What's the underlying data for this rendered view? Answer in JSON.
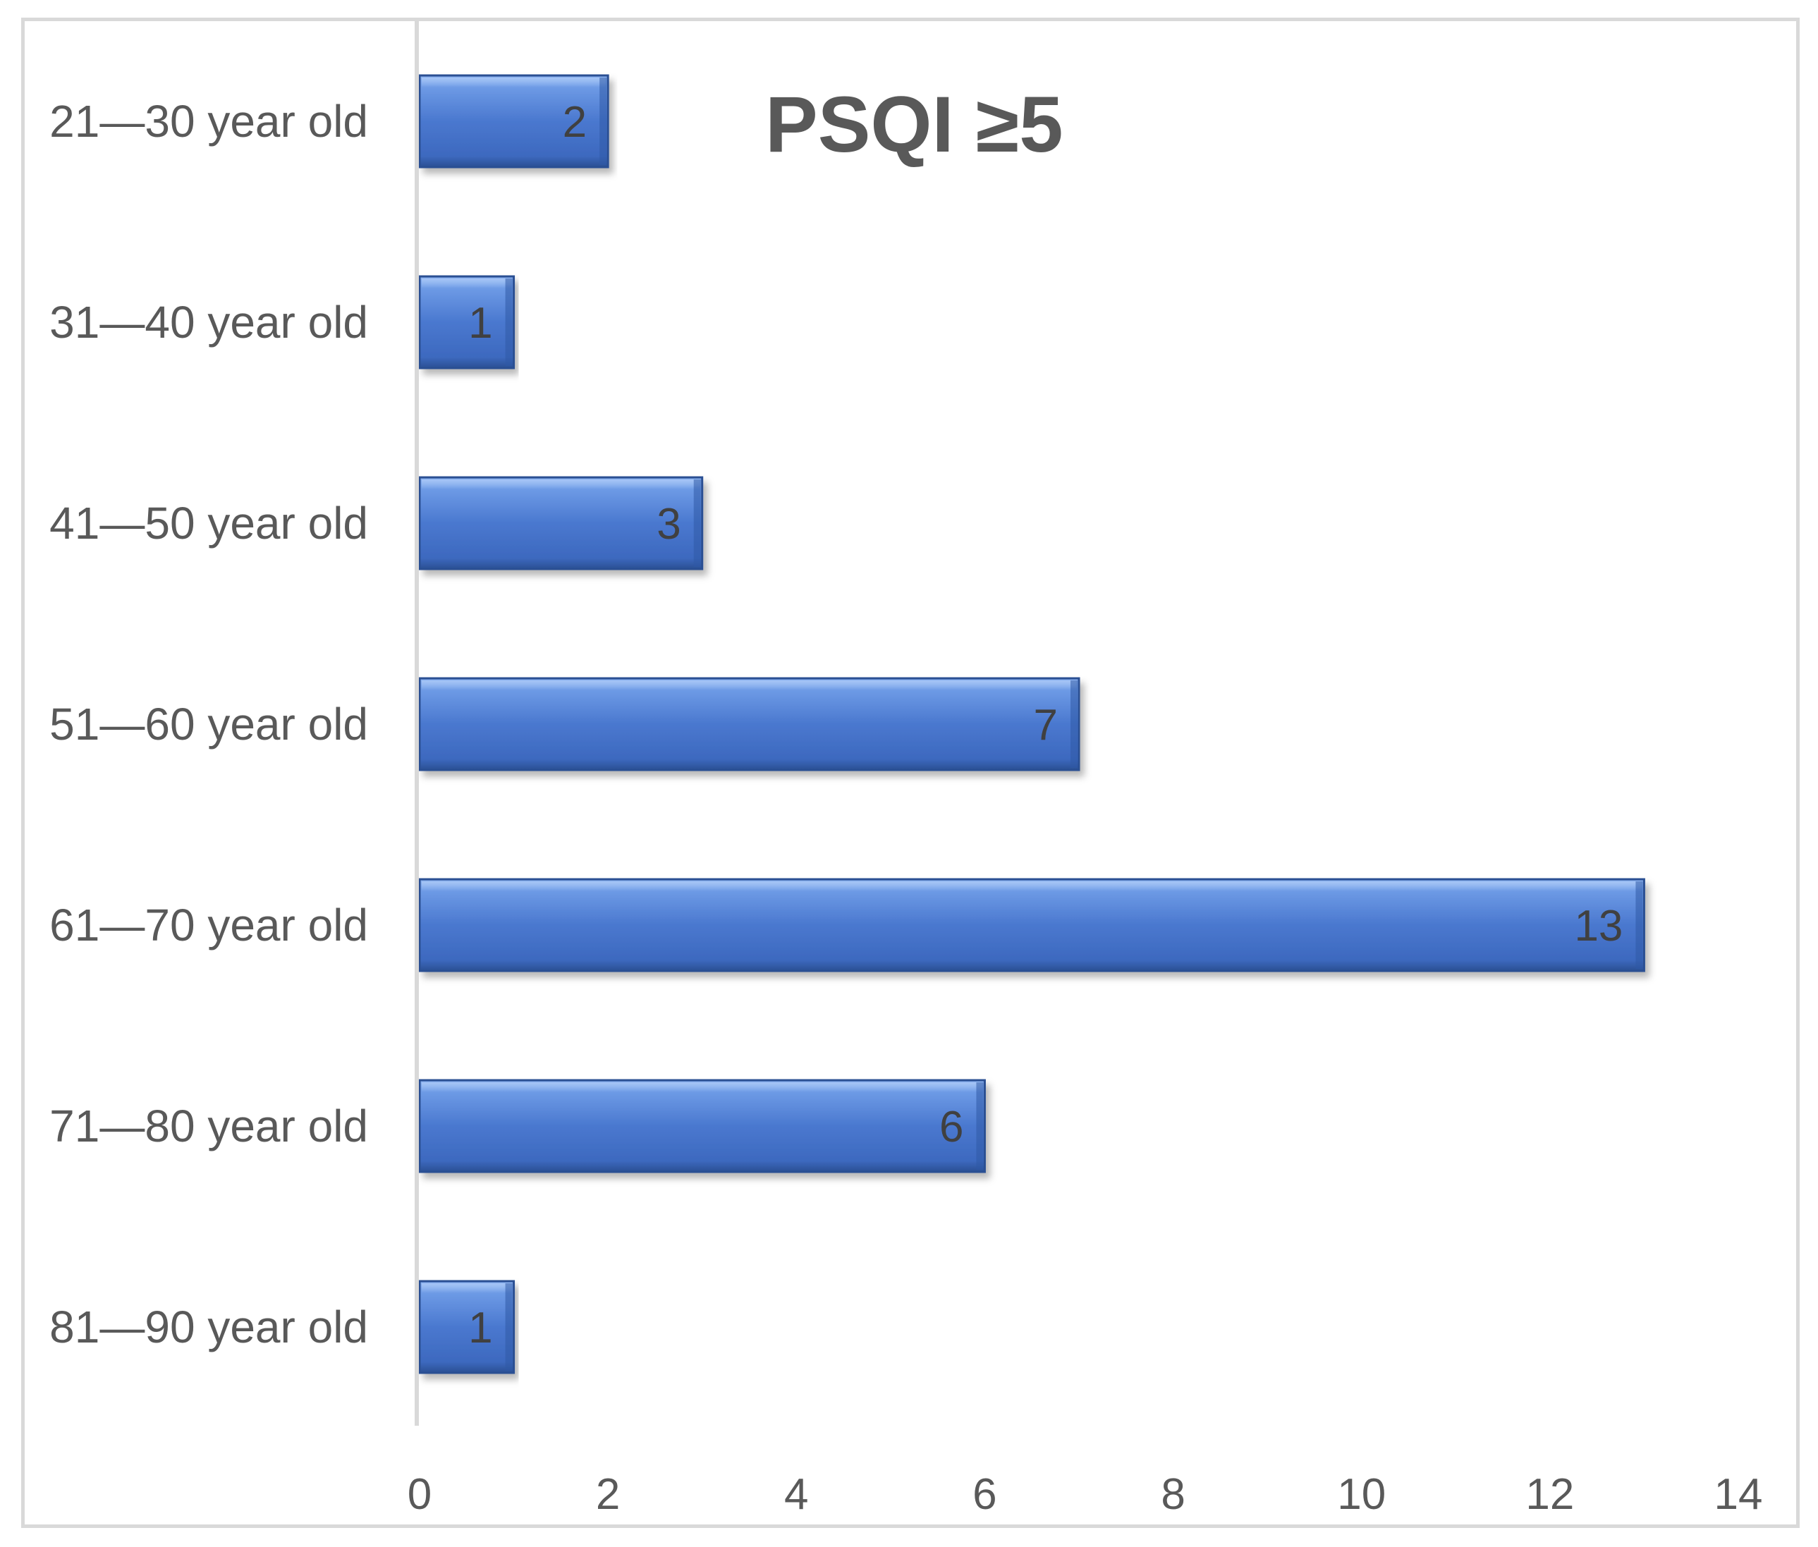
{
  "chart_data": {
    "type": "bar",
    "orientation": "horizontal",
    "title": "PSQI ≥5",
    "categories": [
      "21—30 year old",
      "31—40 year old",
      "41—50 year old",
      "51—60 year old",
      "61—70 year old",
      "71—80 year old",
      "81—90 year old"
    ],
    "values": [
      2,
      1,
      3,
      7,
      13,
      6,
      1
    ],
    "xlim": [
      0,
      14
    ],
    "x_ticks": [
      0,
      2,
      4,
      6,
      8,
      10,
      12,
      14
    ],
    "xlabel": "",
    "ylabel": "",
    "grid": false,
    "legend": "none",
    "colors": {
      "bar": "#4472c4",
      "bar_light": "#8db3f0",
      "bar_dark": "#2a4f93",
      "text": "#595959",
      "axis": "#d9d9d9"
    }
  }
}
